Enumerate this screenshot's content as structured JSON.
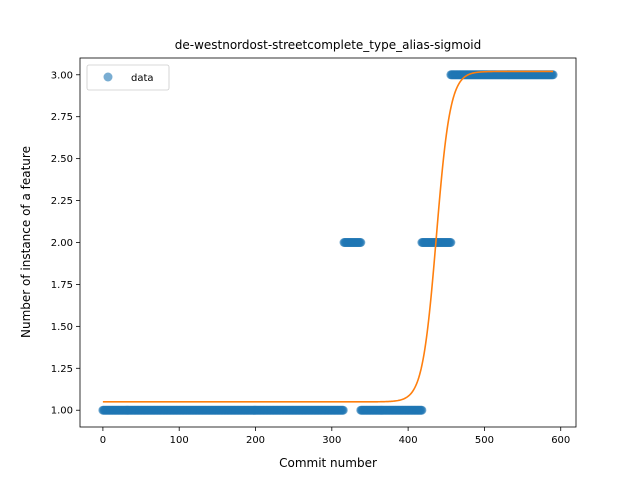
{
  "chart_data": {
    "type": "scatter",
    "title": "de-westnordost-streetcomplete_type_alias-sigmoid",
    "xlabel": "Commit number",
    "ylabel": "Number of instance of a feature",
    "xlim": [
      -30,
      620
    ],
    "ylim": [
      0.9,
      3.1
    ],
    "xticks": [
      0,
      100,
      200,
      300,
      400,
      500,
      600
    ],
    "yticks": [
      1.0,
      1.25,
      1.5,
      1.75,
      2.0,
      2.25,
      2.5,
      2.75,
      3.0
    ],
    "ytick_labels": [
      "1.00",
      "1.25",
      "1.50",
      "1.75",
      "2.00",
      "2.25",
      "2.50",
      "2.75",
      "3.00"
    ],
    "grid": false,
    "legend": {
      "position": "top-left",
      "entries": [
        "data"
      ]
    },
    "series": [
      {
        "name": "data",
        "kind": "scatter",
        "color": "#1f77b4",
        "segments": [
          {
            "x_start": 0,
            "x_end": 315,
            "y": 1.0
          },
          {
            "x_start": 316,
            "x_end": 338,
            "y": 2.0
          },
          {
            "x_start": 338,
            "x_end": 418,
            "y": 1.0
          },
          {
            "x_start": 418,
            "x_end": 456,
            "y": 2.0
          },
          {
            "x_start": 456,
            "x_end": 590,
            "y": 3.0
          }
        ]
      },
      {
        "kind": "line",
        "color": "#ff7f0e",
        "model": "sigmoid",
        "params": {
          "lower": 1.05,
          "upper": 3.02,
          "midpoint": 437,
          "rate": 0.11
        },
        "x_range": [
          0,
          590
        ]
      }
    ]
  }
}
